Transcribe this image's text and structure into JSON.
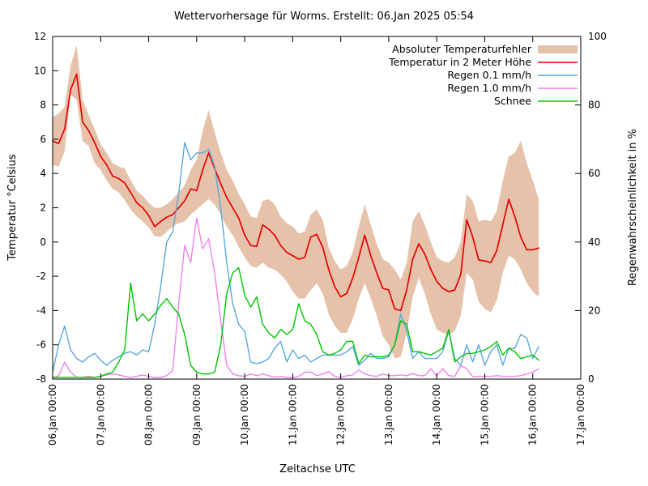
{
  "title": "Wettervorhersage für Worms. Erstellt: 06.Jan 2025 05:54",
  "axes": {
    "x_label": "Zeitachse UTC",
    "y_left_label": "Temperatur °Celsius",
    "y_right_label": "Regenwahrscheinlichkeit in %",
    "y_left_ticks": [
      12,
      10,
      8,
      6,
      4,
      2,
      0,
      -2,
      -4,
      -6,
      -8
    ],
    "y_right_ticks": [
      100,
      80,
      60,
      40,
      20,
      0
    ],
    "x_ticks": [
      "06.Jan 00:00",
      "07.Jan 00:00",
      "08.Jan 00:00",
      "09.Jan 00:00",
      "10.Jan 00:00",
      "11.Jan 00:00",
      "12.Jan 00:00",
      "13.Jan 00:00",
      "14.Jan 00:00",
      "15.Jan 00:00",
      "16.Jan 00:00",
      "17.Jan 00:00"
    ]
  },
  "colors": {
    "band": "#e6c2ab",
    "temperature": "#e60000",
    "rain01": "#59a8dc",
    "rain10": "#ee82ee",
    "snow": "#00c400",
    "axis": "#000000",
    "background": "#ffffff"
  },
  "chart_data": {
    "type": "line",
    "title": "Wettervorhersage für Worms. Erstellt: 06.Jan 2025 05:54",
    "xlabel": "Zeitachse UTC",
    "ylabel_left": "Temperatur °Celsius",
    "ylabel_right": "Regenwahrscheinlichkeit in %",
    "ylim_left": [
      -8,
      12
    ],
    "ylim_right": [
      0,
      100
    ],
    "x_range_days": 11,
    "x_start": "06.Jan 00:00",
    "x_end_axis": "17.Jan 00:00",
    "sample_interval_hours": 3,
    "grid": false,
    "legend_position": "top-right-inside",
    "band": {
      "name": "Absoluter Temperaturfehler",
      "axis": "temp",
      "upper": [
        7.3,
        7.5,
        7.9,
        10.3,
        11.5,
        8.3,
        7.4,
        6.6,
        5.7,
        5.2,
        4.6,
        4.4,
        4.3,
        3.6,
        3.0,
        2.7,
        2.3,
        2.0,
        2.0,
        2.2,
        2.5,
        2.9,
        3.3,
        4.2,
        4.8,
        6.5,
        7.7,
        6.4,
        5.2,
        4.2,
        3.6,
        2.8,
        2.2,
        1.5,
        1.4,
        2.4,
        2.5,
        2.2,
        1.5,
        1.1,
        0.9,
        0.5,
        0.6,
        1.6,
        1.9,
        1.3,
        -0.3,
        -1.1,
        -1.6,
        -1.4,
        -0.6,
        0.9,
        2.2,
        1.0,
        -0.1,
        -1.0,
        -1.2,
        -1.6,
        -2.2,
        -1.2,
        1.2,
        1.8,
        1.0,
        0.0,
        -0.9,
        -1.1,
        -1.2,
        -0.9,
        0.0,
        2.8,
        2.4,
        1.2,
        1.3,
        1.2,
        1.8,
        3.6,
        5.0,
        5.2,
        5.9,
        4.6,
        3.6,
        2.5
      ],
      "lower": [
        4.5,
        4.4,
        5.3,
        8.6,
        8.3,
        5.9,
        5.6,
        4.6,
        4.2,
        3.6,
        3.1,
        2.9,
        2.45,
        1.9,
        1.5,
        1.2,
        0.85,
        0.35,
        0.3,
        0.6,
        0.9,
        1.1,
        1.2,
        1.6,
        1.9,
        2.2,
        2.5,
        2.2,
        1.6,
        0.9,
        0.4,
        -0.3,
        -0.9,
        -1.4,
        -1.5,
        -1.2,
        -1.5,
        -1.6,
        -1.9,
        -2.3,
        -2.9,
        -3.3,
        -3.3,
        -2.8,
        -2.4,
        -3.0,
        -4.2,
        -4.9,
        -5.3,
        -5.3,
        -4.5,
        -3.3,
        -2.4,
        -3.3,
        -4.3,
        -5.5,
        -6.0,
        -6.8,
        -6.7,
        -5.3,
        -3.2,
        -2.1,
        -3.0,
        -4.2,
        -5.1,
        -5.3,
        -5.4,
        -5.2,
        -4.3,
        -1.8,
        -2.2,
        -3.5,
        -3.9,
        -4.1,
        -3.4,
        -1.8,
        -0.8,
        -1.0,
        -1.6,
        -2.4,
        -2.9,
        -3.2
      ]
    },
    "series": [
      {
        "name": "Temperatur in 2 Meter Höhe",
        "axis": "temp",
        "unit": "°C",
        "values": [
          5.9,
          5.75,
          6.6,
          8.9,
          9.8,
          7.0,
          6.5,
          5.8,
          5.0,
          4.5,
          3.85,
          3.7,
          3.45,
          2.9,
          2.3,
          2.0,
          1.55,
          0.9,
          1.2,
          1.45,
          1.6,
          2.0,
          2.4,
          3.1,
          3.0,
          4.2,
          5.2,
          4.3,
          3.4,
          2.6,
          2.0,
          1.4,
          0.4,
          -0.2,
          -0.25,
          1.0,
          0.75,
          0.4,
          -0.2,
          -0.6,
          -0.8,
          -1.0,
          -0.9,
          0.3,
          0.45,
          -0.3,
          -1.6,
          -2.6,
          -3.2,
          -3.0,
          -2.1,
          -0.9,
          0.4,
          -0.8,
          -1.8,
          -2.7,
          -2.8,
          -3.9,
          -4.0,
          -2.8,
          -1.0,
          -0.1,
          -0.7,
          -1.6,
          -2.3,
          -2.7,
          -2.9,
          -2.8,
          -1.9,
          1.3,
          0.3,
          -1.05,
          -1.1,
          -1.2,
          -0.5,
          1.0,
          2.5,
          1.5,
          0.3,
          -0.45,
          -0.45,
          -0.35
        ]
      },
      {
        "name": "Regen 0.1 mm/h",
        "axis": "percent",
        "unit": "%",
        "values": [
          2,
          10,
          15.5,
          8.5,
          6,
          5,
          6.5,
          7.5,
          5.5,
          4,
          5.5,
          6.5,
          7.5,
          8,
          7,
          8.5,
          8,
          16,
          27,
          40,
          43,
          54,
          69,
          64,
          66,
          66,
          67,
          62,
          50,
          34,
          22,
          16,
          14,
          5,
          4.5,
          5,
          6,
          9,
          11,
          5,
          8.5,
          6,
          7,
          5,
          6,
          7,
          7,
          7,
          7,
          8,
          9.5,
          4,
          5.5,
          7.5,
          6,
          6,
          6.5,
          10,
          19,
          14,
          6,
          8,
          6,
          6,
          6,
          8,
          14,
          6,
          4,
          10,
          5,
          10,
          4,
          8,
          10,
          4,
          9,
          9,
          13,
          12,
          6,
          9.5
        ]
      },
      {
        "name": "Regen 1.0 mm/h",
        "axis": "percent",
        "unit": "%",
        "values": [
          0.3,
          1,
          5,
          2,
          0.5,
          0.5,
          0.8,
          0.5,
          0.8,
          1.2,
          1.5,
          1.2,
          0.8,
          0.5,
          0.8,
          1.2,
          0.8,
          0.5,
          0.5,
          1,
          2.5,
          22,
          39,
          34,
          47,
          38,
          41,
          31,
          17,
          4,
          1.5,
          1,
          0.8,
          1.5,
          1,
          1.5,
          1,
          0.6,
          0.8,
          0.5,
          0.5,
          0.8,
          2,
          2,
          1,
          1.5,
          2.2,
          0.8,
          0.5,
          1,
          1.2,
          2.7,
          1.5,
          1,
          0.8,
          1.5,
          1,
          1,
          1.2,
          1,
          1.6,
          1,
          1,
          3,
          1,
          3.1,
          1,
          0.8,
          3.9,
          3,
          0.7,
          0.8,
          0.8,
          0.8,
          1,
          0.8,
          0.8,
          0.8,
          1,
          1.5,
          2,
          3
        ]
      },
      {
        "name": "Schnee",
        "axis": "percent",
        "unit": "%",
        "values": [
          0.5,
          0.5,
          0.5,
          0.5,
          0.5,
          0.5,
          0.5,
          0.5,
          0.8,
          1.5,
          2,
          5,
          8.5,
          28,
          17,
          19,
          17,
          19,
          21.5,
          23.5,
          21,
          19,
          13,
          4,
          2,
          1.5,
          1.5,
          2,
          10,
          25,
          31,
          32.5,
          24.5,
          21,
          24,
          16,
          13.5,
          12,
          14.5,
          13,
          14.5,
          22,
          17,
          16,
          13,
          8,
          7,
          7.5,
          8.5,
          11,
          11,
          4.5,
          7,
          6.5,
          6.5,
          6.5,
          7,
          10,
          17,
          16,
          8,
          8,
          7.5,
          7,
          8,
          9,
          14.5,
          5,
          6.5,
          7.5,
          7.5,
          8,
          8.5,
          9.5,
          11,
          7,
          9,
          8,
          6,
          6.5,
          7,
          5.5
        ]
      }
    ],
    "legend_entries": [
      "Absoluter Temperaturfehler",
      "Temperatur in 2 Meter Höhe",
      "Regen 0.1 mm/h",
      "Regen 1.0 mm/h",
      "Schnee"
    ]
  }
}
